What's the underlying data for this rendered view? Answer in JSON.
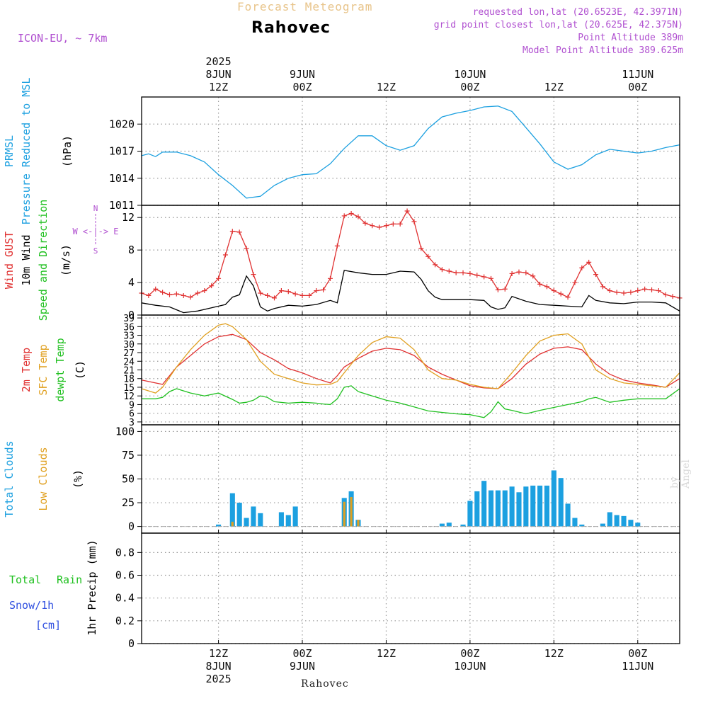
{
  "header": {
    "title": "Forecast Meteogram",
    "location": "Rahovec",
    "model": "ICON-EU, ~ 7km",
    "requested": "requested lon,lat (20.6523E, 42.3971N)",
    "grid_point": "grid point closest lon,lat (20.625E, 42.375N)",
    "point_altitude": "Point Altitude 389m",
    "model_altitude": "Model Point Altitude 389.625m"
  },
  "time_axis": {
    "ticks": [
      {
        "hour": 12,
        "top": [
          "2025",
          "8JUN",
          "12Z"
        ],
        "bottom": [
          "12Z",
          "8JUN",
          "2025"
        ]
      },
      {
        "hour": 24,
        "top": [
          "9JUN",
          "00Z"
        ],
        "bottom": [
          "00Z",
          "9JUN"
        ]
      },
      {
        "hour": 36,
        "top": [
          "12Z"
        ],
        "bottom": [
          "12Z"
        ]
      },
      {
        "hour": 48,
        "top": [
          "10JUN",
          "00Z"
        ],
        "bottom": [
          "00Z",
          "10JUN"
        ]
      },
      {
        "hour": 60,
        "top": [
          "12Z"
        ],
        "bottom": [
          "12Z"
        ]
      },
      {
        "hour": 72,
        "top": [
          "11JUN",
          "00Z"
        ],
        "bottom": [
          "00Z",
          "11JUN"
        ]
      }
    ],
    "start_hour": 1,
    "end_hour": 78
  },
  "chart_data": [
    {
      "type": "line",
      "panel": "pressure",
      "labels": [
        {
          "text": "PRMSL",
          "color": "#1ca0e0"
        },
        {
          "text": "Pressure Reduced to MSL",
          "color": "#1ca0e0"
        },
        {
          "text": "(hPa)",
          "color": "#000000"
        }
      ],
      "yticks": [
        1011,
        1014,
        1017,
        1020
      ],
      "ylim": [
        1011,
        1023
      ],
      "series": [
        {
          "color": "#1ca0e0",
          "x": [
            1,
            2,
            3,
            4,
            6,
            8,
            10,
            12,
            14,
            16,
            18,
            20,
            22,
            24,
            26,
            28,
            30,
            32,
            34,
            36,
            38,
            40,
            42,
            44,
            46,
            48,
            50,
            52,
            54,
            56,
            58,
            60,
            62,
            64,
            66,
            68,
            70,
            72,
            74,
            76,
            78
          ],
          "y": [
            1016.5,
            1016.7,
            1016.4,
            1016.9,
            1016.9,
            1016.5,
            1015.8,
            1014.4,
            1013.2,
            1011.8,
            1012.0,
            1013.2,
            1014.0,
            1014.4,
            1014.5,
            1015.6,
            1017.3,
            1018.7,
            1018.7,
            1017.6,
            1017.1,
            1017.6,
            1019.5,
            1020.8,
            1021.2,
            1021.5,
            1021.9,
            1022.0,
            1021.4,
            1019.6,
            1017.8,
            1015.8,
            1015.0,
            1015.5,
            1016.6,
            1017.2,
            1017.0,
            1016.8,
            1017.0,
            1017.4,
            1017.7
          ]
        }
      ]
    },
    {
      "type": "line",
      "panel": "wind",
      "labels": [
        {
          "text": "Wind GUST",
          "color": "#e03030"
        },
        {
          "text": "10m Wind",
          "color": "#000000"
        },
        {
          "text": "Speed and Direction",
          "color": "#20c020"
        },
        {
          "text": "(m/s)",
          "color": "#000000"
        }
      ],
      "compass": "W <-|-> E",
      "compass_ns": [
        "N",
        "S"
      ],
      "yticks": [
        0,
        4,
        8,
        12
      ],
      "ylim": [
        0,
        13.5
      ],
      "series": [
        {
          "color": "#e03030",
          "marker": "+",
          "x": [
            1,
            2,
            3,
            4,
            5,
            6,
            7,
            8,
            9,
            10,
            11,
            12,
            13,
            14,
            15,
            16,
            17,
            18,
            19,
            20,
            21,
            22,
            23,
            24,
            25,
            26,
            27,
            28,
            29,
            30,
            31,
            32,
            33,
            34,
            35,
            36,
            37,
            38,
            39,
            40,
            41,
            42,
            43,
            44,
            45,
            46,
            47,
            48,
            49,
            50,
            51,
            52,
            53,
            54,
            55,
            56,
            57,
            58,
            59,
            60,
            61,
            62,
            63,
            64,
            65,
            66,
            67,
            68,
            69,
            70,
            71,
            72,
            73,
            74,
            75,
            76,
            77,
            78
          ],
          "y": [
            2.7,
            2.4,
            3.2,
            2.8,
            2.5,
            2.6,
            2.4,
            2.2,
            2.7,
            3.0,
            3.6,
            4.5,
            7.4,
            10.3,
            10.2,
            8.2,
            5.0,
            2.7,
            2.4,
            2.1,
            3.0,
            2.9,
            2.6,
            2.4,
            2.4,
            3.0,
            3.1,
            4.5,
            8.5,
            12.2,
            12.5,
            12.1,
            11.3,
            11.0,
            10.8,
            11.0,
            11.2,
            11.2,
            12.8,
            11.5,
            8.2,
            7.2,
            6.2,
            5.6,
            5.4,
            5.2,
            5.2,
            5.1,
            4.9,
            4.7,
            4.5,
            3.1,
            3.2,
            5.1,
            5.3,
            5.2,
            4.8,
            3.8,
            3.5,
            3.0,
            2.6,
            2.2,
            4.0,
            5.8,
            6.5,
            5.0,
            3.5,
            3.0,
            2.8,
            2.7,
            2.8,
            3.0,
            3.2,
            3.1,
            3.0,
            2.5,
            2.3,
            2.1
          ]
        },
        {
          "color": "#000000",
          "x": [
            1,
            3,
            5,
            7,
            9,
            11,
            13,
            14,
            15,
            16,
            17,
            18,
            19,
            20,
            22,
            24,
            26,
            28,
            29,
            30,
            32,
            34,
            36,
            38,
            40,
            41,
            42,
            43,
            44,
            46,
            48,
            50,
            51,
            52,
            53,
            54,
            56,
            58,
            60,
            62,
            64,
            65,
            66,
            68,
            70,
            72,
            74,
            76,
            78
          ],
          "y": [
            1.5,
            1.2,
            1.0,
            0.3,
            0.5,
            0.9,
            1.3,
            2.2,
            2.5,
            4.8,
            3.6,
            1.0,
            0.5,
            0.8,
            1.2,
            1.1,
            1.3,
            1.8,
            1.5,
            5.5,
            5.2,
            5.0,
            5.0,
            5.4,
            5.3,
            4.4,
            3.0,
            2.2,
            1.9,
            1.9,
            1.9,
            1.8,
            1.0,
            0.7,
            0.9,
            2.3,
            1.7,
            1.3,
            1.2,
            1.1,
            1.0,
            2.4,
            1.8,
            1.5,
            1.4,
            1.6,
            1.6,
            1.5,
            0.5
          ]
        }
      ]
    },
    {
      "type": "line",
      "panel": "temperature",
      "labels": [
        {
          "text": "2m Temp",
          "color": "#e03030"
        },
        {
          "text": "SFC Temp",
          "color": "#e0a020"
        },
        {
          "text": "dewpt Temp",
          "color": "#20c020"
        },
        {
          "text": "(C)",
          "color": "#000000"
        }
      ],
      "yticks": [
        3,
        6,
        9,
        12,
        15,
        18,
        21,
        24,
        27,
        30,
        33,
        36,
        39
      ],
      "ylim": [
        2,
        40
      ],
      "series": [
        {
          "color": "#e03030",
          "x": [
            1,
            3,
            4,
            6,
            8,
            10,
            12,
            14,
            16,
            18,
            20,
            22,
            24,
            26,
            28,
            29,
            30,
            32,
            34,
            36,
            38,
            40,
            42,
            44,
            46,
            48,
            50,
            52,
            54,
            56,
            58,
            60,
            62,
            64,
            66,
            68,
            70,
            72,
            74,
            76,
            78
          ],
          "y": [
            17.5,
            16.5,
            16.0,
            22.0,
            26.0,
            30.0,
            32.5,
            33.3,
            31.5,
            27.0,
            24.5,
            21.5,
            20.0,
            18.0,
            16.5,
            19.0,
            22.0,
            25.0,
            27.5,
            28.5,
            28.0,
            26.0,
            22.0,
            19.5,
            17.5,
            15.5,
            14.8,
            14.5,
            18.0,
            23.0,
            26.5,
            28.5,
            29.0,
            28.0,
            23.0,
            19.5,
            17.5,
            16.5,
            15.8,
            15.0,
            18.0
          ]
        },
        {
          "color": "#e0a020",
          "x": [
            1,
            3,
            4,
            6,
            8,
            10,
            12,
            13,
            14,
            16,
            18,
            20,
            22,
            24,
            26,
            28,
            29,
            30,
            32,
            34,
            36,
            38,
            40,
            42,
            44,
            46,
            48,
            50,
            52,
            54,
            56,
            58,
            60,
            62,
            64,
            66,
            68,
            70,
            72,
            74,
            76,
            78
          ],
          "y": [
            14.5,
            13.0,
            15.0,
            22.0,
            28.0,
            33.0,
            36.5,
            37.0,
            36.0,
            31.5,
            24.0,
            19.5,
            18.0,
            16.5,
            15.8,
            16.0,
            17.0,
            20.0,
            26.0,
            30.5,
            32.5,
            32.0,
            28.0,
            21.0,
            18.0,
            17.5,
            16.0,
            15.0,
            14.5,
            20.0,
            26.0,
            31.0,
            33.0,
            33.5,
            30.0,
            21.0,
            18.0,
            16.5,
            16.0,
            15.5,
            15.0,
            20.0
          ]
        },
        {
          "color": "#20c020",
          "x": [
            1,
            3,
            4,
            5,
            6,
            8,
            10,
            12,
            14,
            15,
            16,
            17,
            18,
            19,
            20,
            22,
            24,
            26,
            27,
            28,
            29,
            30,
            31,
            32,
            34,
            36,
            38,
            40,
            42,
            44,
            46,
            48,
            49,
            50,
            51,
            52,
            53,
            54,
            56,
            58,
            60,
            62,
            64,
            65,
            66,
            68,
            70,
            72,
            74,
            76,
            78
          ],
          "y": [
            11.0,
            11.0,
            11.5,
            13.5,
            14.5,
            13.0,
            12.0,
            13.0,
            10.8,
            9.5,
            9.8,
            10.5,
            12.0,
            11.5,
            10.0,
            9.5,
            9.8,
            9.5,
            9.2,
            9.0,
            11.0,
            15.0,
            15.5,
            13.5,
            12.0,
            10.5,
            9.5,
            8.2,
            6.8,
            6.3,
            5.8,
            5.5,
            5.0,
            4.5,
            6.5,
            10.0,
            7.5,
            7.0,
            5.8,
            7.0,
            8.0,
            9.0,
            10.0,
            11.0,
            11.5,
            9.8,
            10.5,
            11.0,
            11.0,
            11.0,
            14.5
          ]
        }
      ]
    },
    {
      "type": "bar",
      "panel": "clouds",
      "labels": [
        {
          "text": "Total Clouds",
          "color": "#1ca0e0"
        },
        {
          "text": "Low Clouds",
          "color": "#e0a020"
        },
        {
          "text": "(%)",
          "color": "#000000"
        }
      ],
      "yticks": [
        0,
        25,
        50,
        75,
        100
      ],
      "ylim": [
        -7,
        107
      ],
      "series": [
        {
          "name": "Total Clouds",
          "color": "#1ca0e0",
          "x": [
            12,
            14,
            15,
            16,
            17,
            18,
            19,
            21,
            22,
            23,
            30,
            31,
            32,
            44,
            45,
            47,
            48,
            49,
            50,
            51,
            52,
            53,
            54,
            55,
            56,
            57,
            58,
            59,
            60,
            61,
            62,
            63,
            64,
            67,
            68,
            69,
            70,
            71,
            72,
            73
          ],
          "y": [
            2,
            35,
            25,
            9,
            21,
            14,
            0,
            15,
            12,
            21,
            30,
            37,
            7,
            3,
            4,
            2,
            27,
            37,
            48,
            38,
            38,
            38,
            42,
            36,
            42,
            43,
            43,
            43,
            59,
            51,
            24,
            9,
            2,
            3,
            15,
            12,
            11,
            7,
            4,
            0
          ]
        },
        {
          "name": "Low Clouds",
          "color": "#e0a020",
          "x": [
            14,
            30,
            31,
            32
          ],
          "y": [
            5,
            26,
            31,
            7
          ]
        }
      ]
    },
    {
      "type": "bar",
      "panel": "precip",
      "labels": [
        {
          "text": "Total",
          "color": "#20c020"
        },
        {
          "text": "Rain",
          "color": "#20c020"
        },
        {
          "text": "Snow/1h",
          "color": "#3050e0"
        },
        {
          "text": "[cm]",
          "color": "#3050e0"
        },
        {
          "text": "1hr Precip (mm)",
          "color": "#000000"
        }
      ],
      "yticks": [
        0,
        0.2,
        0.4,
        0.6,
        0.8
      ],
      "ylim": [
        0,
        0.97
      ],
      "series": []
    }
  ],
  "footer": "Rahovec",
  "credit": "by Angel"
}
